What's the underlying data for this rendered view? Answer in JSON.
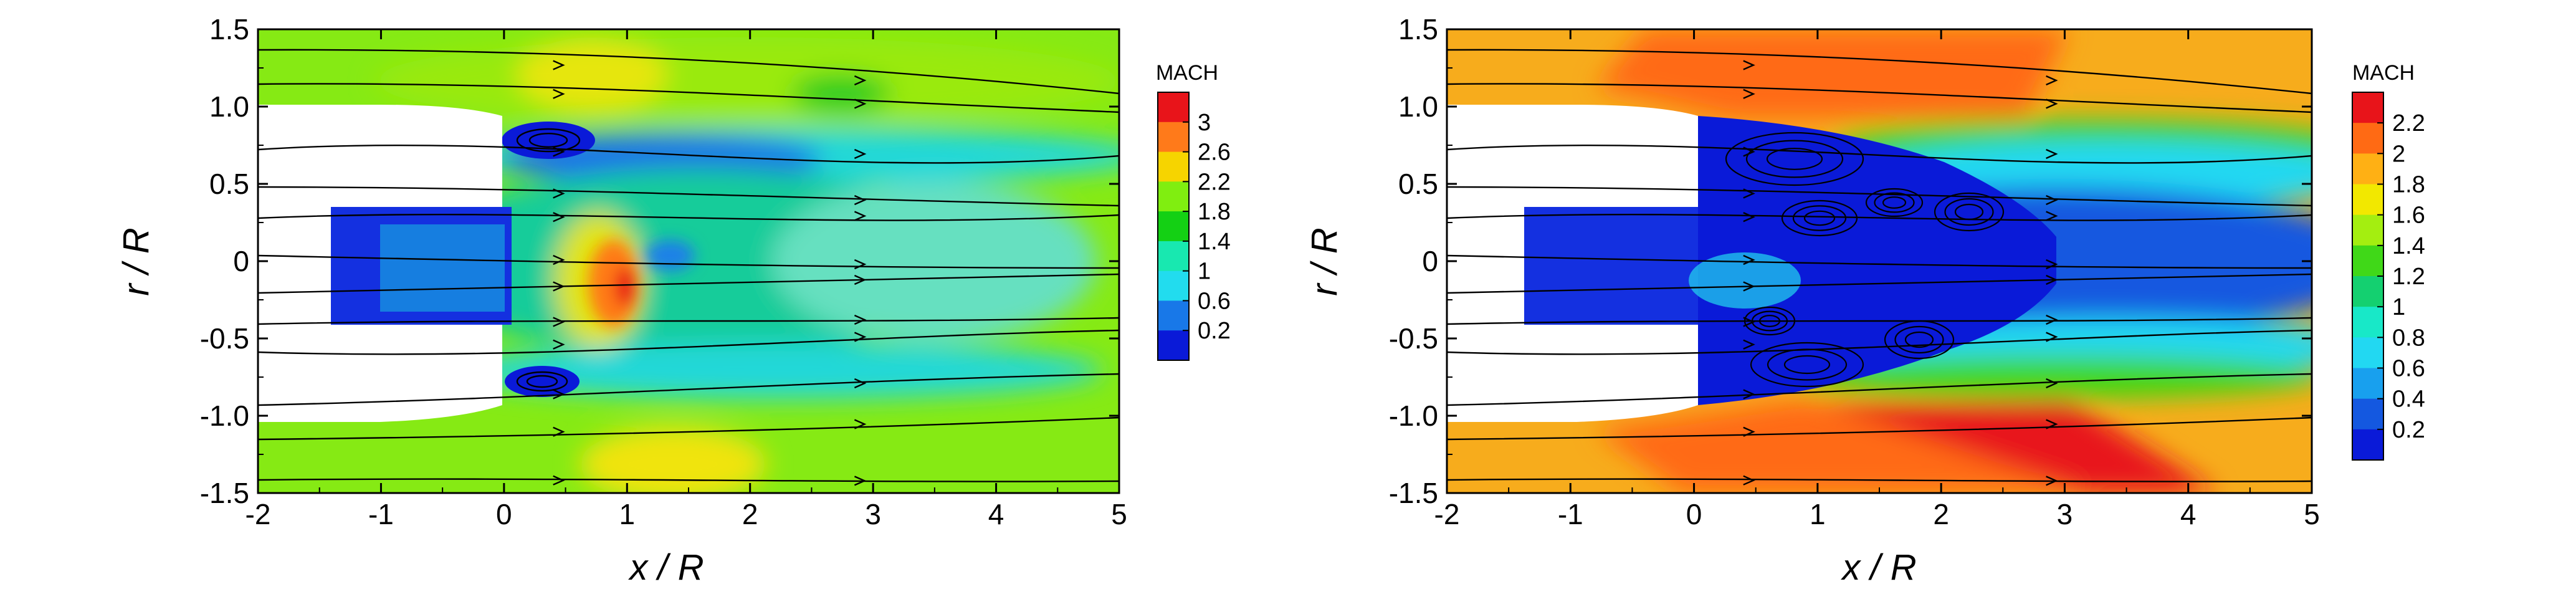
{
  "chart_data": [
    {
      "type": "heatmap",
      "title": "",
      "xlabel": "x / R",
      "ylabel": "r / R",
      "xlim": [
        -2,
        5
      ],
      "ylim": [
        -1.5,
        1.5
      ],
      "xticks": [
        "-2",
        "-1",
        "0",
        "1",
        "2",
        "3",
        "4",
        "5"
      ],
      "yticks": [
        "1.5",
        "1.0",
        "0.5",
        "0",
        "-0.5",
        "-1.0",
        "-1.5"
      ],
      "colorbar": {
        "title": "MACH",
        "labels": [
          "3",
          "2.6",
          "2.2",
          "1.8",
          "1.4",
          "1",
          "0.6",
          "0.2"
        ],
        "colors": [
          "#e8141a",
          "#ff7a1a",
          "#f6d400",
          "#80ee10",
          "#14d014",
          "#18e8b0",
          "#22dcee",
          "#1878e8",
          "#0a1ad8"
        ]
      },
      "background": "#86ea14",
      "grid": false
    },
    {
      "type": "heatmap",
      "title": "",
      "xlabel": "x / R",
      "ylabel": "r / R",
      "xlim": [
        -2,
        5
      ],
      "ylim": [
        -1.5,
        1.5
      ],
      "xticks": [
        "-2",
        "-1",
        "0",
        "1",
        "2",
        "3",
        "4",
        "5"
      ],
      "yticks": [
        "1.5",
        "1.0",
        "0.5",
        "0",
        "-0.5",
        "-1.0",
        "-1.5"
      ],
      "colorbar": {
        "title": "MACH",
        "labels": [
          "2.2",
          "2",
          "1.8",
          "1.6",
          "1.4",
          "1.2",
          "1",
          "0.8",
          "0.6",
          "0.4",
          "0.2"
        ],
        "colors": [
          "#e8141a",
          "#ff6a14",
          "#ffb014",
          "#f2e800",
          "#a4ee10",
          "#40d818",
          "#14d070",
          "#18e8c8",
          "#22d8f2",
          "#18a0ee",
          "#1458e0",
          "#0a1ad8"
        ]
      },
      "background": "#f7ac1c",
      "grid": false
    }
  ]
}
